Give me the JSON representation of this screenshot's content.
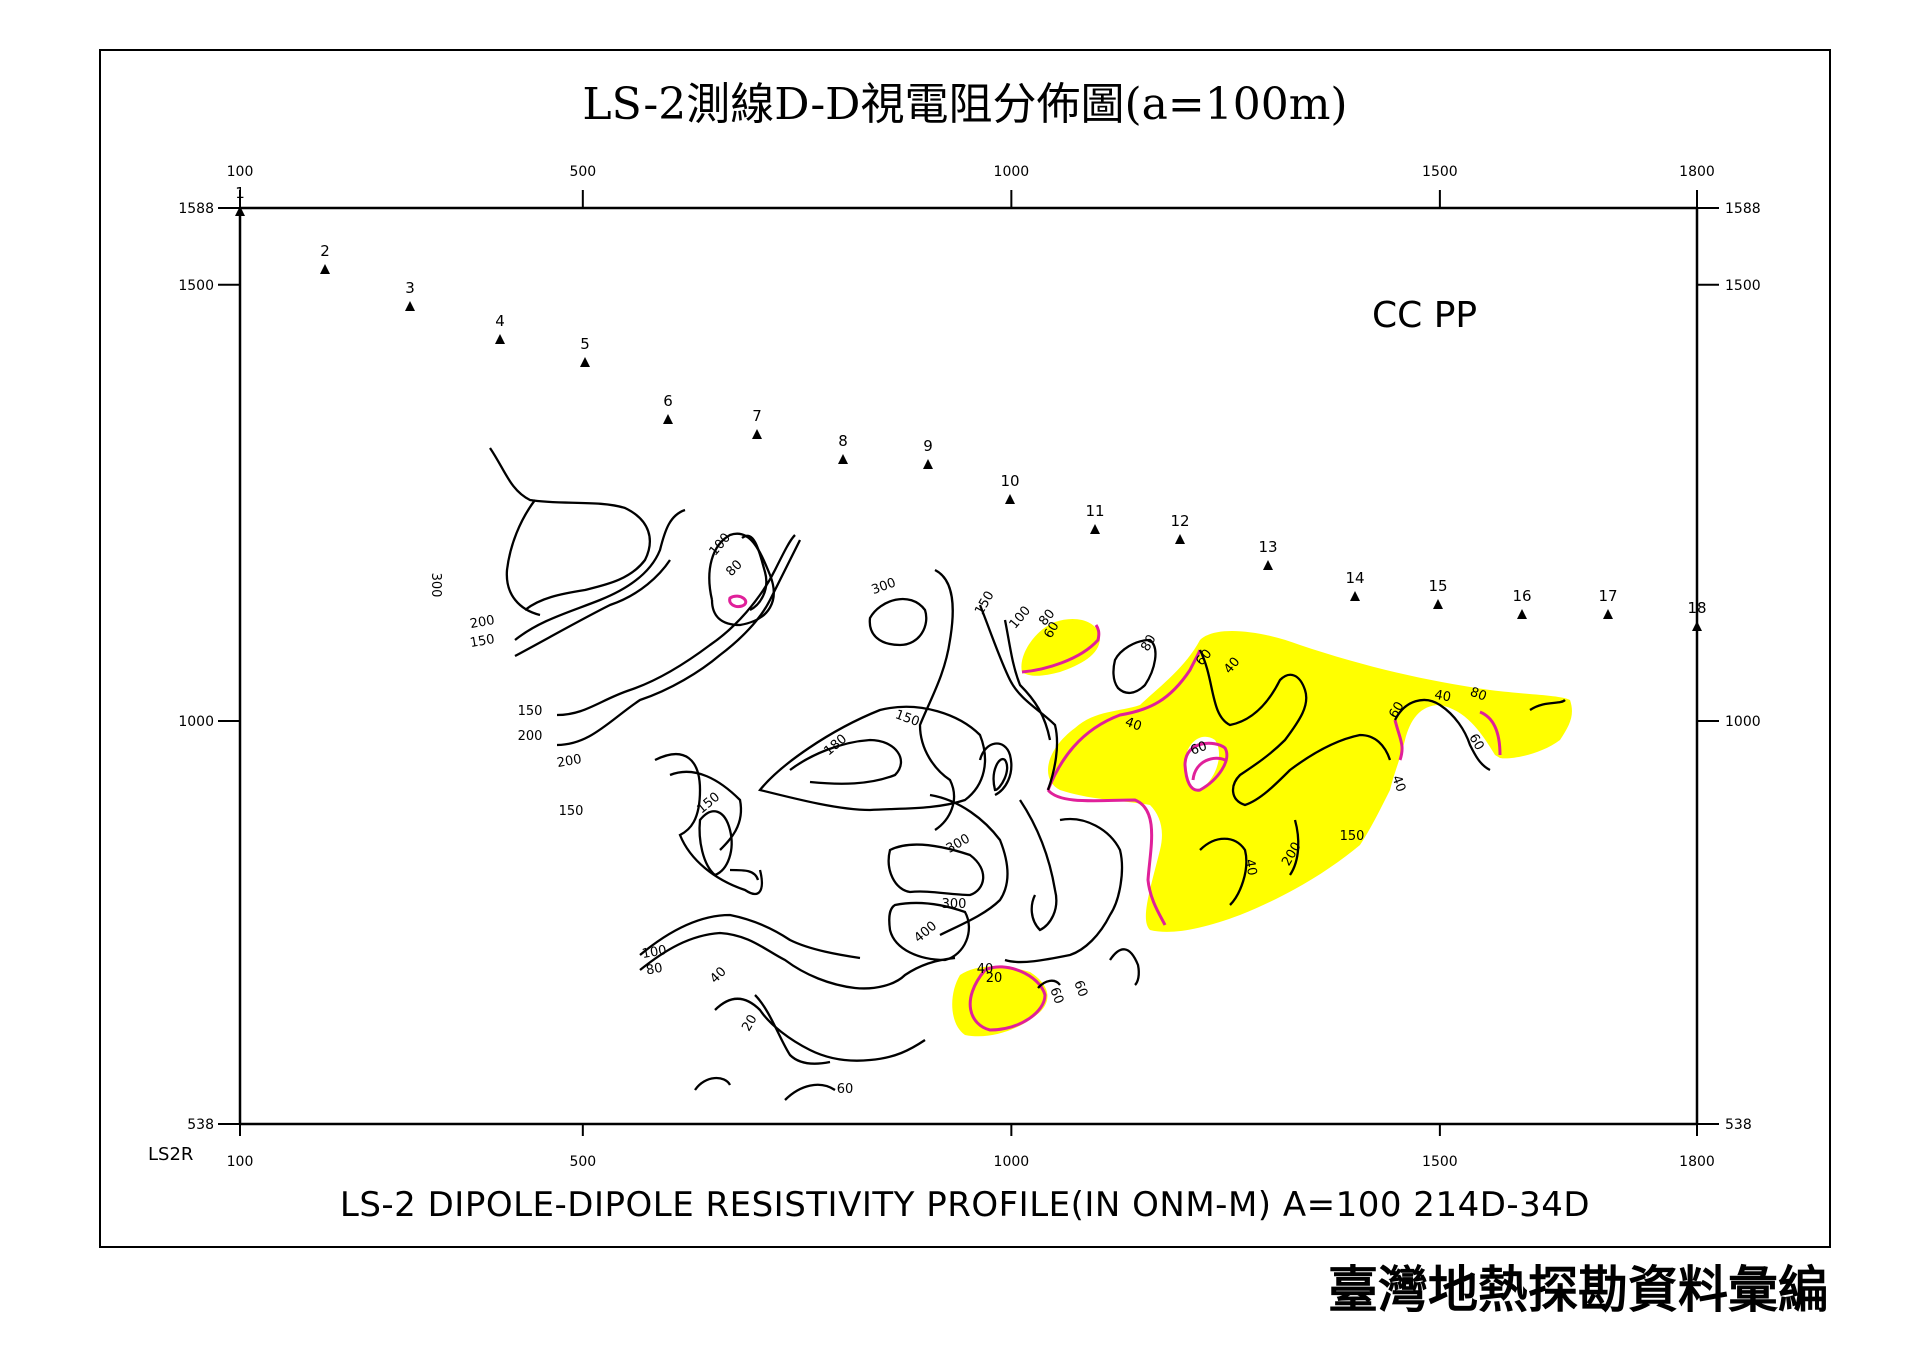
{
  "chart_data": {
    "type": "contour",
    "title": "LS-2測線D-D視電阻分佈圖(a=100m)",
    "caption": "LS-2  DIPOLE-DIPOLE  RESISTIVITY PROFILE(IN  ONM-M)  A=100  214D-34D",
    "line_label": "LS2R",
    "annotation": "CC   PP",
    "x_ticks": [
      "100",
      "500",
      "1000",
      "1500",
      "1800"
    ],
    "y_ticks": [
      "1588",
      "1500",
      "1000",
      "538"
    ],
    "xlim": [
      100,
      1800
    ],
    "ylim": [
      538,
      1588
    ],
    "stations": [
      "1",
      "2",
      "3",
      "4",
      "5",
      "6",
      "7",
      "8",
      "9",
      "10",
      "11",
      "12",
      "13",
      "14",
      "15",
      "16",
      "17",
      "18"
    ],
    "contour_labels": [
      "300",
      "200",
      "150",
      "150",
      "200",
      "200",
      "150",
      "100",
      "80",
      "300",
      "150",
      "100",
      "80",
      "60",
      "80",
      "60",
      "40",
      "40",
      "60",
      "60",
      "40",
      "80",
      "60",
      "40",
      "180",
      "150",
      "300",
      "150",
      "300",
      "400",
      "20",
      "40",
      "40",
      "200",
      "150",
      "100",
      "80",
      "40",
      "20",
      "60",
      "60",
      "60"
    ],
    "low_resistivity_fill": "#ffff00",
    "highlight_contour": "#e0209a",
    "line_color": "#000000"
  },
  "footer": "臺灣地熱探勘資料彙編"
}
